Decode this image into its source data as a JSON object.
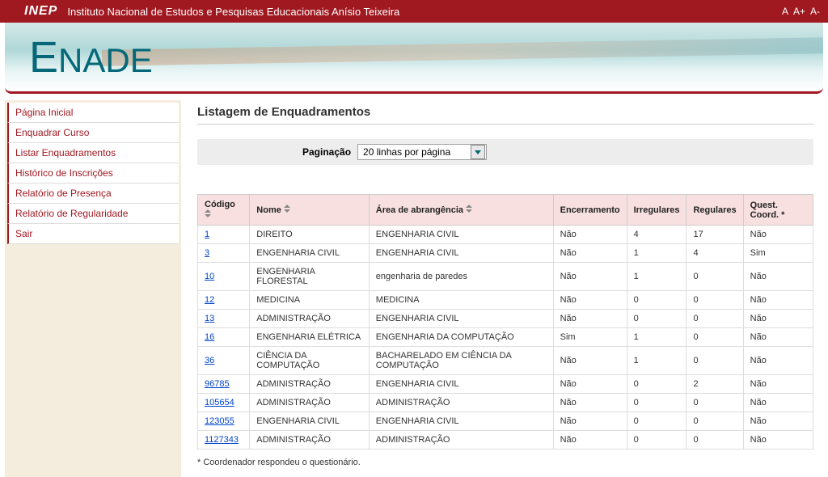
{
  "header": {
    "org_abbrev": "INEP",
    "org_full": "Instituto Nacional de Estudos e Pesquisas Educacionais Anísio Teixeira",
    "font_normal": "A",
    "font_larger": "A+",
    "font_smaller": "A-"
  },
  "banner": {
    "app_name_prefix": "E",
    "app_name_suffix": "NADE"
  },
  "sidebar": {
    "items": [
      {
        "label": "Página Inicial"
      },
      {
        "label": "Enquadrar Curso"
      },
      {
        "label": "Listar Enquadramentos"
      },
      {
        "label": "Histórico de Inscrições"
      },
      {
        "label": "Relatório de Presença"
      },
      {
        "label": "Relatório de Regularidade"
      },
      {
        "label": "Sair"
      }
    ]
  },
  "page": {
    "title": "Listagem de Enquadramentos",
    "pagination_label": "Paginação",
    "pagination_value": "20 linhas por página",
    "footnote": "* Coordenador respondeu o questionário."
  },
  "table": {
    "columns": [
      {
        "label": "Código",
        "sortable": true
      },
      {
        "label": "Nome",
        "sortable": true
      },
      {
        "label": "Área de abrangência",
        "sortable": true
      },
      {
        "label": "Encerramento",
        "sortable": false
      },
      {
        "label": "Irregulares",
        "sortable": false
      },
      {
        "label": "Regulares",
        "sortable": false
      },
      {
        "label": "Quest. Coord. *",
        "sortable": false
      }
    ],
    "rows": [
      {
        "codigo": "1",
        "nome": "DIREITO",
        "area": "ENGENHARIA CIVIL",
        "encerramento": "Não",
        "irregulares": "4",
        "regulares": "17",
        "quest": "Não"
      },
      {
        "codigo": "3",
        "nome": "ENGENHARIA CIVIL",
        "area": "ENGENHARIA CIVIL",
        "encerramento": "Não",
        "irregulares": "1",
        "regulares": "4",
        "quest": "Sim"
      },
      {
        "codigo": "10",
        "nome": "ENGENHARIA FLORESTAL",
        "area": "engenharia de paredes",
        "encerramento": "Não",
        "irregulares": "1",
        "regulares": "0",
        "quest": "Não"
      },
      {
        "codigo": "12",
        "nome": "MEDICINA",
        "area": "MEDICINA",
        "encerramento": "Não",
        "irregulares": "0",
        "regulares": "0",
        "quest": "Não"
      },
      {
        "codigo": "13",
        "nome": "ADMINISTRAÇÃO",
        "area": "ENGENHARIA CIVIL",
        "encerramento": "Não",
        "irregulares": "0",
        "regulares": "0",
        "quest": "Não"
      },
      {
        "codigo": "16",
        "nome": "ENGENHARIA ELÉTRICA",
        "area": "ENGENHARIA DA COMPUTAÇÃO",
        "encerramento": "Sim",
        "irregulares": "1",
        "regulares": "0",
        "quest": "Não"
      },
      {
        "codigo": "36",
        "nome": "CIÊNCIA DA COMPUTAÇÃO",
        "area": "BACHARELADO EM CIÊNCIA DA COMPUTAÇÃO",
        "encerramento": "Não",
        "irregulares": "1",
        "regulares": "0",
        "quest": "Não"
      },
      {
        "codigo": "96785",
        "nome": "ADMINISTRAÇÃO",
        "area": "ENGENHARIA CIVIL",
        "encerramento": "Não",
        "irregulares": "0",
        "regulares": "2",
        "quest": "Não"
      },
      {
        "codigo": "105654",
        "nome": "ADMINISTRAÇÃO",
        "area": "ADMINISTRAÇÃO",
        "encerramento": "Não",
        "irregulares": "0",
        "regulares": "0",
        "quest": "Não"
      },
      {
        "codigo": "123055",
        "nome": "ENGENHARIA CIVIL",
        "area": "ENGENHARIA CIVIL",
        "encerramento": "Não",
        "irregulares": "0",
        "regulares": "0",
        "quest": "Não"
      },
      {
        "codigo": "1127343",
        "nome": "ADMINISTRAÇÃO",
        "area": "ADMINISTRAÇÃO",
        "encerramento": "Não",
        "irregulares": "0",
        "regulares": "0",
        "quest": "Não"
      }
    ]
  }
}
